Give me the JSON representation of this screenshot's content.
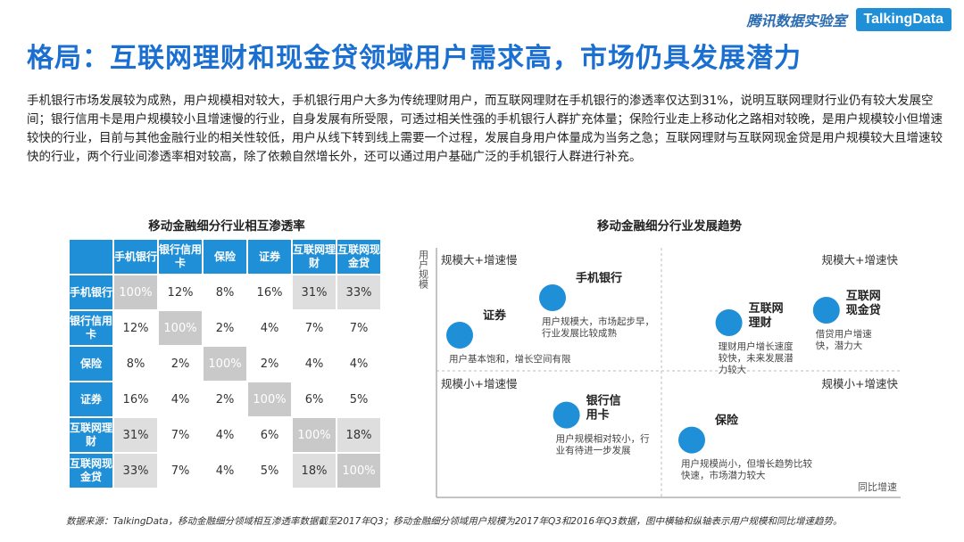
{
  "brand": {
    "cn": "腾讯数据实验室",
    "logo": "TalkingData"
  },
  "title": "格局：互联网理财和现金贷领域用户需求高，市场仍具发展潜力",
  "intro": "手机银行市场发展较为成熟，用户规模相对较大，手机银行用户大多为传统理财用户，而互联网理财在手机银行的渗透率仅达到31%，说明互联网理财行业仍有较大发展空间；银行信用卡是用户规模较小且增速慢的行业，自身发展有所受限，可透过相关性强的手机银行人群扩充体量；保险行业走上移动化之路相对较晚，是用户规模较小但增速较快的行业，目前与其他金融行业的相关性较低，用户从线下转到线上需要一个过程，发展自身用户体量成为当务之急；互联网理财与互联网现金贷是用户规模较大且增速较快的行业，两个行业间渗透率相对较高，除了依赖自然增长外，还可以通过用户基础广泛的手机银行人群进行补充。",
  "chart_data": [
    {
      "type": "table",
      "title": "移动金融细分行业相互渗透率",
      "columns": [
        "手机银行",
        "银行信用卡",
        "保险",
        "证券",
        "互联网理财",
        "互联网现金贷"
      ],
      "rows": [
        {
          "label": "手机银行",
          "values": [
            "100%",
            "12%",
            "8%",
            "16%",
            "31%",
            "33%"
          ]
        },
        {
          "label": "银行信用卡",
          "values": [
            "12%",
            "100%",
            "2%",
            "4%",
            "7%",
            "7%"
          ]
        },
        {
          "label": "保险",
          "values": [
            "8%",
            "2%",
            "100%",
            "2%",
            "4%",
            "4%"
          ]
        },
        {
          "label": "证券",
          "values": [
            "16%",
            "4%",
            "2%",
            "100%",
            "6%",
            "5%"
          ]
        },
        {
          "label": "互联网理财",
          "values": [
            "31%",
            "7%",
            "4%",
            "6%",
            "100%",
            "18%"
          ]
        },
        {
          "label": "互联网现金贷",
          "values": [
            "33%",
            "7%",
            "4%",
            "5%",
            "18%",
            "100%"
          ]
        }
      ]
    },
    {
      "type": "scatter",
      "title": "移动金融细分行业发展趋势",
      "xlabel": "同比增速",
      "ylabel": "用户规模",
      "quadrants": {
        "top_left": "规模大+增速慢",
        "top_right": "规模大+增速快",
        "bottom_left": "规模小+增速慢",
        "bottom_right": "规模小+增速快"
      },
      "points": [
        {
          "name": "手机银行",
          "x": 0.25,
          "y": 0.8,
          "desc": [
            "用户规模大，市场起步早，",
            "行业发展比较成熟"
          ]
        },
        {
          "name": "证券",
          "x": 0.05,
          "y": 0.65,
          "desc": [
            "用户基本饱和，增长空间有限"
          ]
        },
        {
          "name": "互联网理财",
          "x": 0.63,
          "y": 0.7,
          "desc": [
            "理财用户增长速度",
            "较快，未来发展潜",
            "力较大"
          ]
        },
        {
          "name": "互联网现金贷",
          "x": 0.84,
          "y": 0.75,
          "desc": [
            "借贷用户增速",
            "快，潜力大"
          ]
        },
        {
          "name": "银行信用卡",
          "x": 0.28,
          "y": 0.33,
          "desc": [
            "用户规模相对较小，行",
            "业有待进一步发展"
          ]
        },
        {
          "name": "保险",
          "x": 0.55,
          "y": 0.23,
          "desc": [
            "用户规模尚小，但增长趋势比较",
            "快速，市场潜力较大"
          ]
        }
      ]
    }
  ],
  "footnote": "数据来源：TalkingData，移动金融细分领域相互渗透率数据截至2017年Q3；移动金融细分领域用户规模为2017年Q3和2016年Q3数据，图中横轴和纵轴表示用户规模和同比增速趋势。",
  "colors": {
    "accent": "#1f8fd8",
    "title": "#1a6fd0",
    "diagonal": "#c9c9c9",
    "highlight": "#dedede"
  }
}
